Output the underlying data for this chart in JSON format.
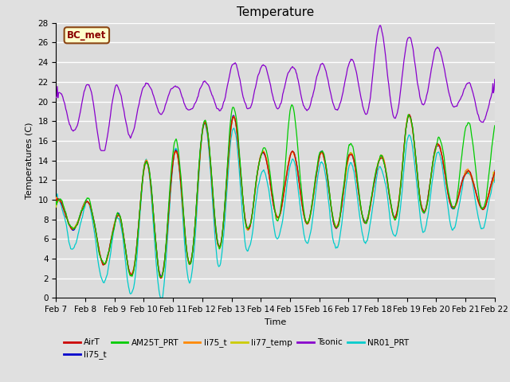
{
  "title": "Temperature",
  "xlabel": "Time",
  "ylabel": "Temperatures (C)",
  "annotation": "BC_met",
  "ylim": [
    0,
    28
  ],
  "xlim": [
    0,
    360
  ],
  "x_tick_labels": [
    "Feb 7",
    "Feb 8",
    "Feb 9",
    "Feb 10",
    "Feb 11",
    "Feb 12",
    "Feb 13",
    "Feb 14",
    "Feb 15",
    "Feb 16",
    "Feb 17",
    "Feb 18",
    "Feb 19",
    "Feb 20",
    "Feb 21",
    "Feb 22"
  ],
  "series_colors": {
    "AirT": "#cc0000",
    "li75_t_blue": "#0000cc",
    "AM25T_PRT": "#00cc00",
    "li75_t_orange": "#ff8800",
    "li77_temp": "#cccc00",
    "Tsonic": "#8800cc",
    "NR01_PRT": "#00cccc"
  },
  "bg_color": "#e0e0e0",
  "plot_bg": "#dcdcdc",
  "grid_color": "white",
  "title_fontsize": 11,
  "label_fontsize": 8,
  "tick_fontsize": 7.5
}
